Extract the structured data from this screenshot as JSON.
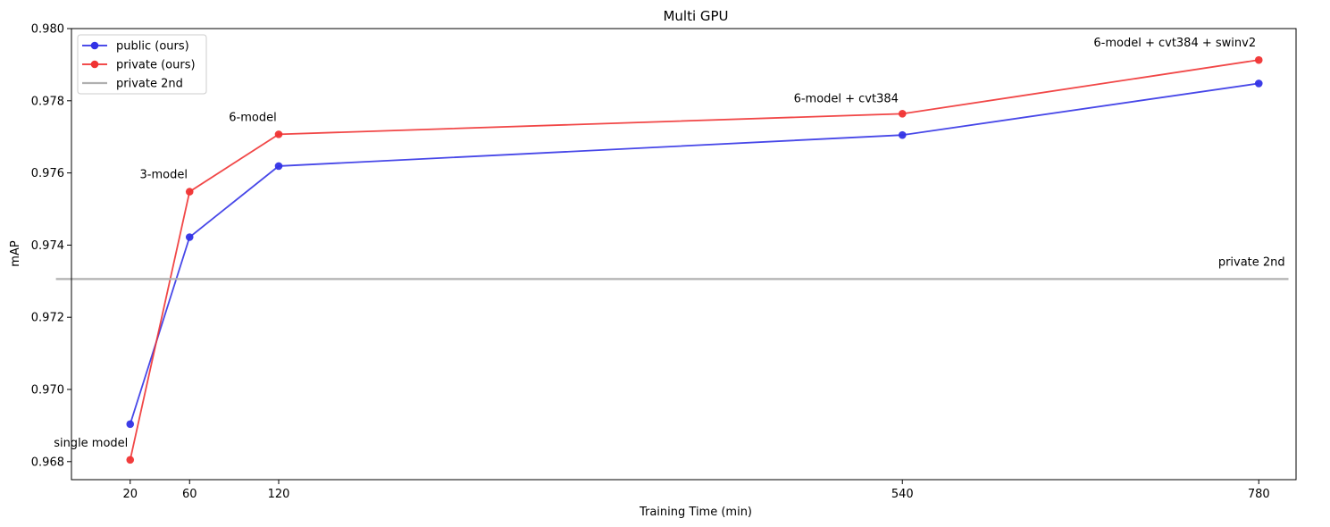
{
  "chart_data": {
    "type": "line",
    "title": "Multi GPU",
    "xlabel": "Training Time (min)",
    "ylabel": "mAP",
    "x": [
      20,
      60,
      120,
      540,
      780
    ],
    "xtick_labels": [
      "20",
      "60",
      "120",
      "540",
      "780"
    ],
    "ylim": [
      0.9675,
      0.98
    ],
    "yticks": [
      "0.968",
      "0.970",
      "0.972",
      "0.974",
      "0.976",
      "0.978",
      "0.980"
    ],
    "grid": false,
    "legend_placement": "top-left",
    "series": [
      {
        "name": "public (ours)",
        "color": "#3333e6",
        "marker": "circle",
        "values": [
          0.96904,
          0.97422,
          0.97619,
          0.97705,
          0.97848
        ]
      },
      {
        "name": "private (ours)",
        "color": "#f03333",
        "marker": "circle",
        "values": [
          0.96805,
          0.97548,
          0.97707,
          0.97764,
          0.97913
        ]
      },
      {
        "name": "private 2nd",
        "color": "#b0b0b0",
        "marker": "none",
        "y": 0.97306,
        "x_range": [
          -30,
          800
        ]
      }
    ],
    "annotations": [
      {
        "text": "single model",
        "x": 20,
        "y": 0.96805
      },
      {
        "text": "3-model",
        "x": 60,
        "y": 0.97548
      },
      {
        "text": "6-model",
        "x": 120,
        "y": 0.97707
      },
      {
        "text": "6-model + cvt384",
        "x": 540,
        "y": 0.97764
      },
      {
        "text": "6-model + cvt384 + swinv2",
        "x": 780,
        "y": 0.97913
      },
      {
        "text": "private 2nd",
        "x": 780,
        "y": 0.97306
      }
    ]
  }
}
